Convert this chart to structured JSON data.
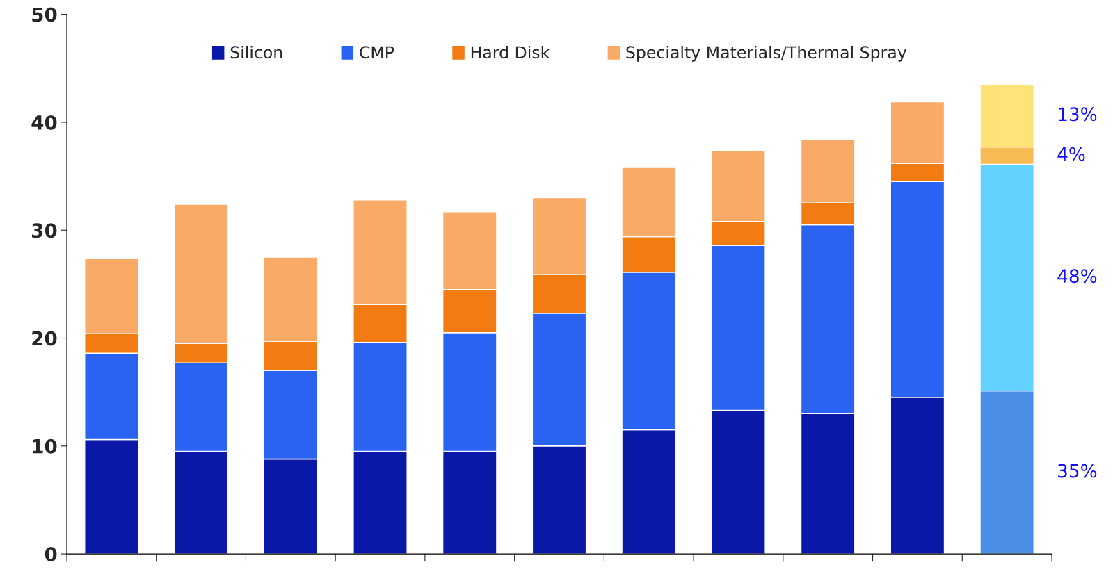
{
  "chart_data": {
    "type": "bar",
    "stacked": true,
    "categories": [
      null,
      null,
      null,
      null,
      null,
      null,
      null,
      null,
      null,
      null,
      null
    ],
    "series": [
      {
        "name": "Silicon",
        "color": "#0a18a8",
        "colors": [
          "#0a18a8",
          "#0a18a8",
          "#0a18a8",
          "#0a18a8",
          "#0a18a8",
          "#0a18a8",
          "#0a18a8",
          "#0a18a8",
          "#0a18a8",
          "#0a18a8",
          "#4a8ee8"
        ],
        "values": [
          10.6,
          9.5,
          8.8,
          9.5,
          9.5,
          10.0,
          11.5,
          13.3,
          13.0,
          14.5,
          15.1
        ]
      },
      {
        "name": "CMP",
        "color": "#2a62f2",
        "colors": [
          "#2a62f2",
          "#2a62f2",
          "#2a62f2",
          "#2a62f2",
          "#2a62f2",
          "#2a62f2",
          "#2a62f2",
          "#2a62f2",
          "#2a62f2",
          "#2a62f2",
          "#64d2ff"
        ],
        "values": [
          8.0,
          8.2,
          8.2,
          10.1,
          11.0,
          12.3,
          14.6,
          15.3,
          17.5,
          20.0,
          21.0
        ]
      },
      {
        "name": "Hard Disk",
        "color": "#f27c12",
        "colors": [
          "#f27c12",
          "#f27c12",
          "#f27c12",
          "#f27c12",
          "#f27c12",
          "#f27c12",
          "#f27c12",
          "#f27c12",
          "#f27c12",
          "#f27c12",
          "#f8ba52"
        ],
        "values": [
          1.8,
          1.8,
          2.7,
          3.5,
          4.0,
          3.6,
          3.3,
          2.2,
          2.1,
          1.7,
          1.6
        ]
      },
      {
        "name": "Specialty Materials/Thermal Spray",
        "color": "#f9aa66",
        "colors": [
          "#f9aa66",
          "#f9aa66",
          "#f9aa66",
          "#f9aa66",
          "#f9aa66",
          "#f9aa66",
          "#f9aa66",
          "#f9aa66",
          "#f9aa66",
          "#f9aa66",
          "#ffe27a"
        ],
        "values": [
          7.0,
          12.9,
          7.8,
          9.7,
          7.2,
          7.1,
          6.4,
          6.6,
          5.8,
          5.7,
          5.8
        ]
      }
    ],
    "ylim": [
      0,
      50
    ],
    "yticks": [
      0,
      10,
      20,
      30,
      40,
      50
    ],
    "grid": false,
    "legend": "top",
    "annotations": [
      "13%",
      "4%",
      "48%",
      "35%"
    ]
  }
}
